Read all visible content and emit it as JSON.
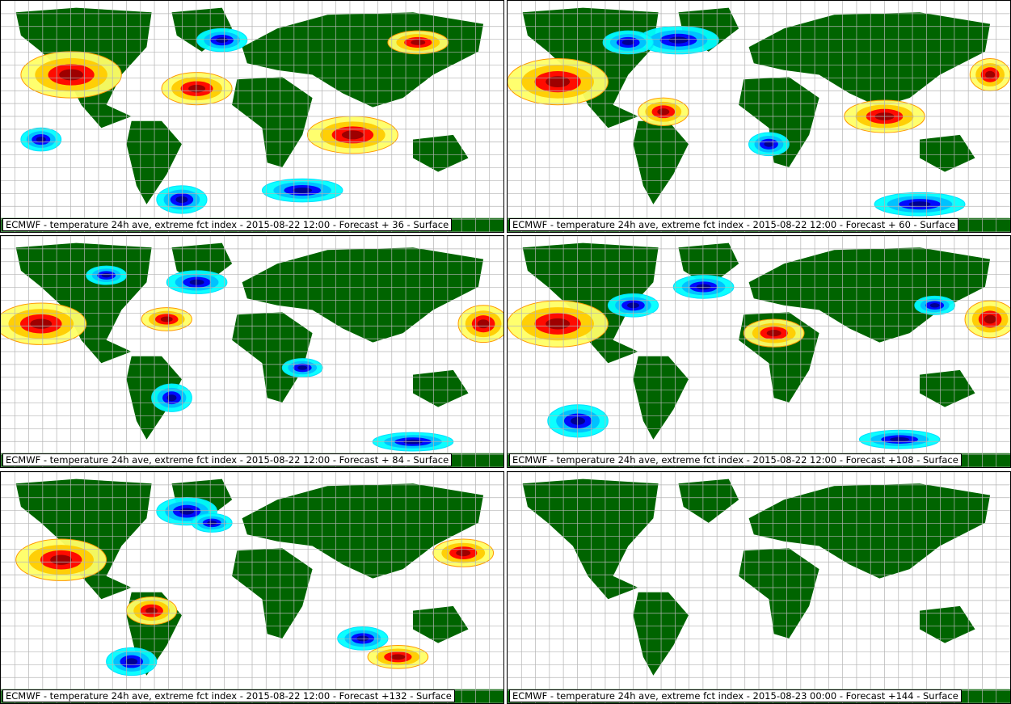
{
  "colors": {
    "land": "#006400",
    "grid": "#b4b4b4",
    "warm_contour": "#ff9900",
    "cold_contour": "#00e0ff",
    "warm_fill": [
      "#ffff66",
      "#ffcc00",
      "#ff0000",
      "#990000"
    ],
    "cold_fill": [
      "#00ffff",
      "#00bfff",
      "#0000ff",
      "#00008b"
    ]
  },
  "panels": [
    {
      "caption": "ECMWF - temperature 24h ave, extreme fct index - 2015-08-22 12:00 - Forecast + 36 - Surface",
      "anomalies": true
    },
    {
      "caption": "ECMWF - temperature 24h ave, extreme fct index - 2015-08-22 12:00 - Forecast + 60 - Surface",
      "anomalies": true
    },
    {
      "caption": "ECMWF - temperature 24h ave, extreme fct index - 2015-08-22 12:00 - Forecast + 84 - Surface",
      "anomalies": true
    },
    {
      "caption": "ECMWF - temperature 24h ave, extreme fct index - 2015-08-22 12:00 - Forecast +108 - Surface",
      "anomalies": true
    },
    {
      "caption": "ECMWF - temperature 24h ave, extreme fct index - 2015-08-22 12:00 - Forecast +132 - Surface",
      "anomalies": true
    },
    {
      "caption": "ECMWF - temperature 24h ave, extreme fct index - 2015-08-23 00:00 - Forecast +144 - Surface",
      "anomalies": false
    }
  ]
}
